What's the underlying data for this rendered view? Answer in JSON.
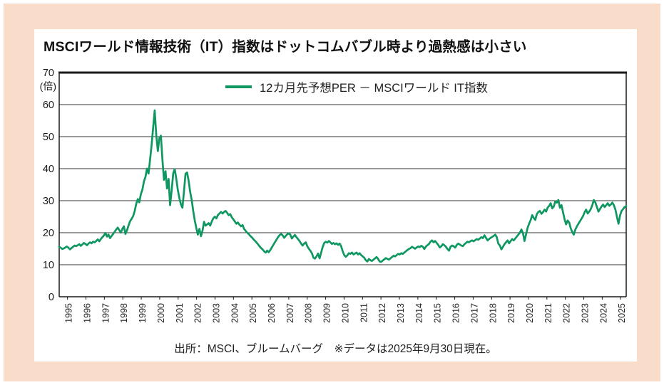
{
  "page": {
    "background_color": "#fadccb",
    "card_color": "#ffffff"
  },
  "card": {
    "title": "MSCIワールド情報技術（IT）指数はドットコムバブル時より過熱感は小さい",
    "source_note": "出所：MSCI、ブルームバーグ　※データは2025年9月30日現在。"
  },
  "chart_data": {
    "type": "line",
    "title": "MSCIワールド情報技術（IT）指数はドットコムバブル時より過熱感は小さい",
    "legend": "12カ月先予想PER － MSCIワールド IT指数",
    "legend_position": "top-center-inside",
    "y_unit": "(倍)",
    "ylim": [
      0,
      70
    ],
    "yticks": [
      0,
      10,
      20,
      30,
      40,
      50,
      60,
      70
    ],
    "grid": "horizontal",
    "line_color": "#0e9760",
    "axis_color": "#1a1a1a",
    "x_start": "1995-01",
    "x_end": "2025-09",
    "frequency": "monthly",
    "xtick_labels": [
      "1995",
      "1996",
      "1997",
      "1998",
      "1999",
      "2000",
      "2001",
      "2002",
      "2003",
      "2004",
      "2005",
      "2006",
      "2007",
      "2008",
      "2009",
      "2010",
      "2011",
      "2012",
      "2013",
      "2014",
      "2015",
      "2016",
      "2017",
      "2018",
      "2019",
      "2020",
      "2021",
      "2022",
      "2023",
      "2024",
      "2025"
    ],
    "series": [
      {
        "name": "12カ月先予想PER － MSCIワールド IT指数",
        "values": [
          15.6,
          15.3,
          14.9,
          15.1,
          15.4,
          15.7,
          15.3,
          14.8,
          15.2,
          15.6,
          16.0,
          15.8,
          16.1,
          16.4,
          15.9,
          16.3,
          16.8,
          16.5,
          16.1,
          16.6,
          17.0,
          16.7,
          17.2,
          17.0,
          17.4,
          17.9,
          17.3,
          18.0,
          18.6,
          19.1,
          19.9,
          18.8,
          19.4,
          18.3,
          19.0,
          19.6,
          20.3,
          21.0,
          21.6,
          20.8,
          20.0,
          21.2,
          22.0,
          19.6,
          20.8,
          22.2,
          23.6,
          24.3,
          25.2,
          26.8,
          29.0,
          30.5,
          29.5,
          32.0,
          33.5,
          36.0,
          37.5,
          40.0,
          38.5,
          43.0,
          47.5,
          53.0,
          58.2,
          50.5,
          45.5,
          49.5,
          50.3,
          43.0,
          36.5,
          39.2,
          33.8,
          36.8,
          28.6,
          33.2,
          38.6,
          39.8,
          36.8,
          33.4,
          30.8,
          28.8,
          27.8,
          33.0,
          38.4,
          38.8,
          36.2,
          32.8,
          30.2,
          26.8,
          23.8,
          21.4,
          19.4,
          21.2,
          18.9,
          20.6,
          23.4,
          22.2,
          22.6,
          23.0,
          22.2,
          23.5,
          24.5,
          25.0,
          24.5,
          25.5,
          26.0,
          26.5,
          26.0,
          26.5,
          26.8,
          26.2,
          25.5,
          25.8,
          24.8,
          24.2,
          23.5,
          22.8,
          23.2,
          22.5,
          22.0,
          22.4,
          21.2,
          20.6,
          20.0,
          19.6,
          19.0,
          18.6,
          18.0,
          17.5,
          17.0,
          16.4,
          15.8,
          15.2,
          14.8,
          14.2,
          13.8,
          14.4,
          13.9,
          14.6,
          15.4,
          16.2,
          17.0,
          17.8,
          18.6,
          19.2,
          19.6,
          19.2,
          18.4,
          19.0,
          19.5,
          19.8,
          19.4,
          18.2,
          18.8,
          19.3,
          18.6,
          18.0,
          17.4,
          16.6,
          16.0,
          16.6,
          17.0,
          15.8,
          15.0,
          14.4,
          13.6,
          12.2,
          11.9,
          12.6,
          13.5,
          12.0,
          13.8,
          15.5,
          16.8,
          17.2,
          16.9,
          17.4,
          17.0,
          16.5,
          16.8,
          16.4,
          16.7,
          16.2,
          16.6,
          15.8,
          14.2,
          13.0,
          12.5,
          12.9,
          13.6,
          13.4,
          13.8,
          13.2,
          13.5,
          13.8,
          13.2,
          13.6,
          13.0,
          12.6,
          12.2,
          11.4,
          11.0,
          11.8,
          11.4,
          11.2,
          11.6,
          12.0,
          12.4,
          11.8,
          11.0,
          10.9,
          11.3,
          11.7,
          12.1,
          11.8,
          11.6,
          12.0,
          12.4,
          12.8,
          12.6,
          13.0,
          13.4,
          13.2,
          13.6,
          13.4,
          13.8,
          14.2,
          14.6,
          14.9,
          15.2,
          15.6,
          15.3,
          15.0,
          15.4,
          15.7,
          15.5,
          15.9,
          15.6,
          14.9,
          15.7,
          16.1,
          16.5,
          17.2,
          17.6,
          17.0,
          17.4,
          16.8,
          16.2,
          15.4,
          15.8,
          16.4,
          16.1,
          15.6,
          14.9,
          14.4,
          15.6,
          16.0,
          15.8,
          15.3,
          16.2,
          16.6,
          16.3,
          16.0,
          15.8,
          16.4,
          16.8,
          17.2,
          17.0,
          17.4,
          17.6,
          17.3,
          17.7,
          18.0,
          17.8,
          18.2,
          18.6,
          18.3,
          19.2,
          18.4,
          17.6,
          18.0,
          18.4,
          18.7,
          19.0,
          19.4,
          18.6,
          16.6,
          16.0,
          14.8,
          15.6,
          16.4,
          17.0,
          17.6,
          16.7,
          17.4,
          18.0,
          17.6,
          18.2,
          18.8,
          19.4,
          20.0,
          21.0,
          19.8,
          17.4,
          19.5,
          21.5,
          22.8,
          24.0,
          25.5,
          24.6,
          24.0,
          25.8,
          26.5,
          26.8,
          25.9,
          26.4,
          27.2,
          26.6,
          27.8,
          28.4,
          29.2,
          27.6,
          28.2,
          29.8,
          29.4,
          30.2,
          27.8,
          28.6,
          26.4,
          24.2,
          22.6,
          23.8,
          23.2,
          21.4,
          20.2,
          19.4,
          21.0,
          22.0,
          22.8,
          23.6,
          24.4,
          25.2,
          26.4,
          27.2,
          26.0,
          26.6,
          27.4,
          28.6,
          30.2,
          29.4,
          28.0,
          26.6,
          27.4,
          28.2,
          28.8,
          28.0,
          28.6,
          29.2,
          28.4,
          28.8,
          29.4,
          28.6,
          27.2,
          25.0,
          22.8,
          25.4,
          26.8,
          27.4,
          28.0,
          28.3
        ]
      }
    ]
  }
}
